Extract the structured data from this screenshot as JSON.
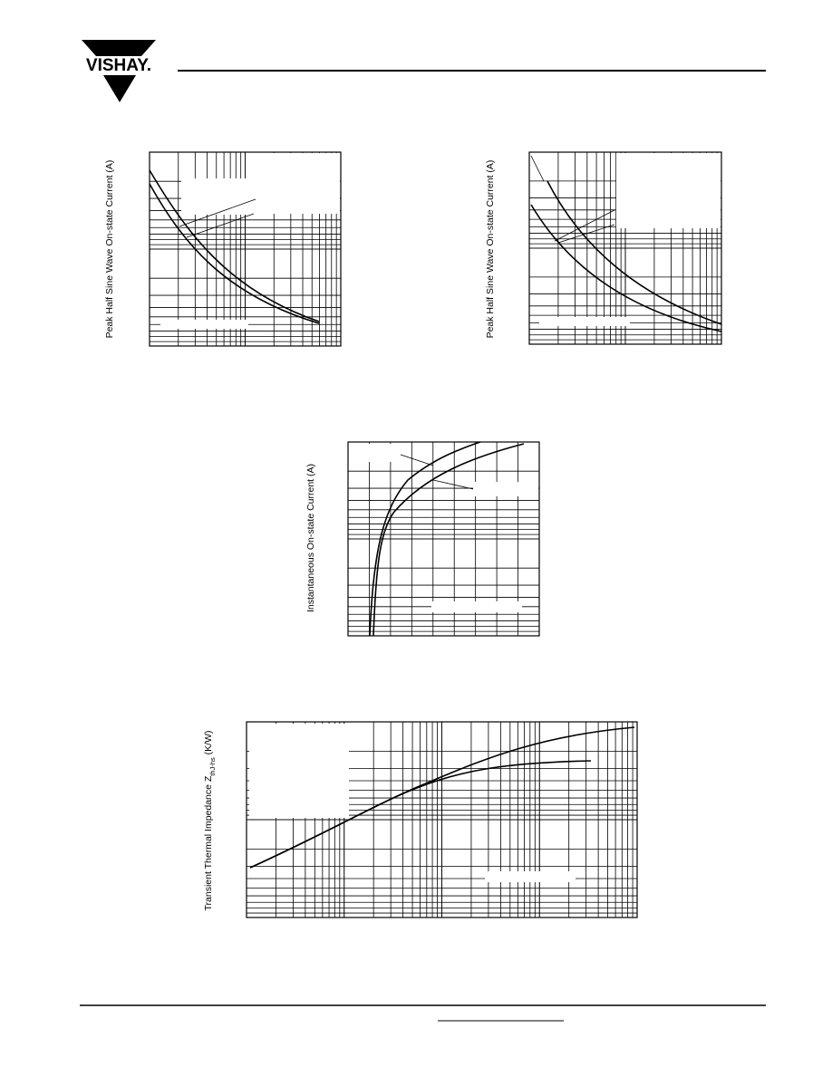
{
  "header": {
    "logo": "VISHAY."
  },
  "figures": [
    {
      "y_label": "Peak Half Sine Wave On-state Current (A)"
    },
    {
      "y_label": "Peak Half Sine Wave On-state Current (A)"
    },
    {
      "y_label": "Instantaneous On-state Current (A)"
    },
    {
      "y_label": "Transient Thermal Impedance Z",
      "y_label_sub": "thJ-hs",
      "y_label_unit": " (K/W)"
    }
  ]
}
